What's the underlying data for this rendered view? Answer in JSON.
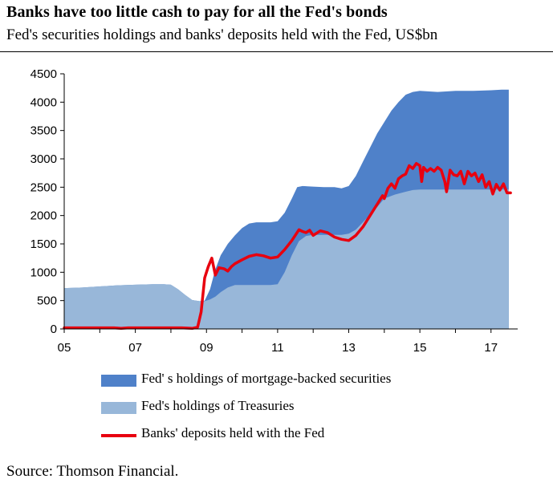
{
  "chart_data": {
    "type": "area",
    "title": "Banks have too little cash to pay for all the Fed's bonds",
    "subtitle": "Fed's securities holdings and banks' deposits held with the Fed, US$bn",
    "xlabel": "",
    "ylabel": "",
    "xlim": [
      2005.0,
      2017.75
    ],
    "ylim": [
      0,
      4500
    ],
    "y_ticks": [
      0,
      500,
      1000,
      1500,
      2000,
      2500,
      3000,
      3500,
      4000,
      4500
    ],
    "x_ticks": [
      {
        "value": 2005,
        "label": "05"
      },
      {
        "value": 2007,
        "label": "07"
      },
      {
        "value": 2009,
        "label": "09"
      },
      {
        "value": 2011,
        "label": "11"
      },
      {
        "value": 2013,
        "label": "13"
      },
      {
        "value": 2015,
        "label": "15"
      },
      {
        "value": 2017,
        "label": "17"
      }
    ],
    "grid": false,
    "legend_position": "bottom",
    "series": [
      {
        "name": "Fed' s holdings of mortgage-backed securities",
        "kind": "stacked-total",
        "color": "#4f81c9",
        "x": [
          2005.0,
          2005.5,
          2006.0,
          2006.5,
          2007.0,
          2007.5,
          2007.8,
          2008.0,
          2008.2,
          2008.4,
          2008.6,
          2008.8,
          2008.95,
          2009.1,
          2009.25,
          2009.4,
          2009.6,
          2009.8,
          2010.0,
          2010.2,
          2010.4,
          2010.6,
          2010.8,
          2011.0,
          2011.2,
          2011.4,
          2011.55,
          2011.7,
          2012.0,
          2012.3,
          2012.6,
          2012.8,
          2013.0,
          2013.2,
          2013.4,
          2013.6,
          2013.8,
          2014.0,
          2014.2,
          2014.4,
          2014.6,
          2014.8,
          2015.0,
          2015.5,
          2016.0,
          2016.5,
          2017.0,
          2017.3,
          2017.5
        ],
        "values": [
          720,
          730,
          750,
          770,
          780,
          790,
          790,
          780,
          700,
          600,
          510,
          490,
          500,
          700,
          1050,
          1300,
          1500,
          1650,
          1780,
          1860,
          1880,
          1880,
          1880,
          1900,
          2050,
          2300,
          2500,
          2520,
          2510,
          2500,
          2500,
          2480,
          2520,
          2700,
          2950,
          3200,
          3450,
          3650,
          3850,
          4000,
          4130,
          4180,
          4200,
          4180,
          4200,
          4200,
          4210,
          4220,
          4220
        ]
      },
      {
        "name": "Fed's holdings of Treasuries",
        "kind": "area",
        "color": "#98b7d9",
        "x": [
          2005.0,
          2005.5,
          2006.0,
          2006.5,
          2007.0,
          2007.5,
          2007.8,
          2008.0,
          2008.2,
          2008.4,
          2008.6,
          2008.8,
          2008.95,
          2009.1,
          2009.25,
          2009.4,
          2009.6,
          2009.8,
          2010.0,
          2010.5,
          2010.8,
          2011.0,
          2011.2,
          2011.4,
          2011.6,
          2011.8,
          2012.0,
          2012.5,
          2012.8,
          2013.0,
          2013.2,
          2013.5,
          2013.8,
          2014.0,
          2014.3,
          2014.6,
          2014.8,
          2015.0,
          2015.5,
          2016.0,
          2016.5,
          2017.0,
          2017.3,
          2017.5
        ],
        "values": [
          720,
          730,
          750,
          770,
          780,
          790,
          790,
          780,
          700,
          600,
          510,
          490,
          490,
          520,
          570,
          650,
          730,
          775,
          775,
          775,
          775,
          790,
          1000,
          1300,
          1550,
          1640,
          1660,
          1660,
          1660,
          1680,
          1750,
          1950,
          2150,
          2300,
          2370,
          2420,
          2450,
          2460,
          2460,
          2460,
          2460,
          2460,
          2460,
          2460
        ]
      },
      {
        "name": "Banks' deposits held with the Fed",
        "kind": "line",
        "color": "#e8000f",
        "x": [
          2005.0,
          2005.5,
          2006.0,
          2006.4,
          2006.6,
          2006.8,
          2007.0,
          2007.5,
          2007.8,
          2008.0,
          2008.3,
          2008.6,
          2008.75,
          2008.85,
          2008.95,
          2009.05,
          2009.15,
          2009.25,
          2009.35,
          2009.5,
          2009.6,
          2009.7,
          2009.8,
          2010.0,
          2010.2,
          2010.4,
          2010.6,
          2010.8,
          2011.0,
          2011.2,
          2011.4,
          2011.6,
          2011.7,
          2011.8,
          2011.9,
          2012.0,
          2012.2,
          2012.4,
          2012.6,
          2012.8,
          2013.0,
          2013.2,
          2013.4,
          2013.6,
          2013.8,
          2013.95,
          2014.0,
          2014.1,
          2014.2,
          2014.3,
          2014.4,
          2014.5,
          2014.6,
          2014.7,
          2014.8,
          2014.9,
          2015.0,
          2015.05,
          2015.1,
          2015.2,
          2015.3,
          2015.4,
          2015.5,
          2015.6,
          2015.7,
          2015.75,
          2015.85,
          2015.95,
          2016.05,
          2016.15,
          2016.25,
          2016.35,
          2016.45,
          2016.55,
          2016.65,
          2016.75,
          2016.85,
          2016.95,
          2017.05,
          2017.15,
          2017.25,
          2017.35,
          2017.45,
          2017.55
        ],
        "values": [
          20,
          20,
          20,
          20,
          10,
          20,
          20,
          20,
          20,
          20,
          20,
          10,
          30,
          300,
          900,
          1100,
          1250,
          950,
          1080,
          1060,
          1020,
          1100,
          1150,
          1220,
          1280,
          1310,
          1290,
          1250,
          1270,
          1400,
          1560,
          1750,
          1720,
          1700,
          1740,
          1650,
          1730,
          1700,
          1620,
          1580,
          1560,
          1650,
          1800,
          2000,
          2200,
          2350,
          2300,
          2480,
          2560,
          2480,
          2650,
          2700,
          2730,
          2880,
          2830,
          2920,
          2880,
          2600,
          2850,
          2780,
          2830,
          2780,
          2850,
          2800,
          2600,
          2420,
          2800,
          2720,
          2700,
          2780,
          2560,
          2780,
          2700,
          2750,
          2600,
          2720,
          2500,
          2600,
          2380,
          2550,
          2450,
          2560,
          2400,
          2400
        ]
      }
    ]
  },
  "legend": [
    {
      "label": "Fed' s holdings of mortgage-backed securities",
      "color": "#4f81c9",
      "type": "box"
    },
    {
      "label": "Fed's holdings of Treasuries",
      "color": "#98b7d9",
      "type": "box"
    },
    {
      "label": "Banks' deposits held with the Fed",
      "color": "#e8000f",
      "type": "line"
    }
  ],
  "source": "Source: Thomson Financial."
}
